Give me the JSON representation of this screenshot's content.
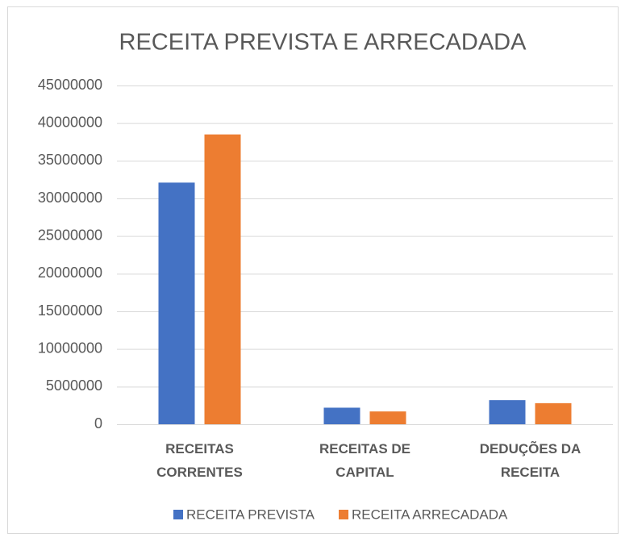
{
  "chart_data": {
    "type": "bar",
    "title": "RECEITA PREVISTA E ARRECADADA",
    "categories": [
      "RECEITAS CORRENTES",
      "RECEITAS DE CAPITAL",
      "DEDUÇÕES DA RECEITA"
    ],
    "series": [
      {
        "name": "RECEITA PREVISTA",
        "color": "#4472c4",
        "values": [
          32100000,
          2200000,
          3200000
        ]
      },
      {
        "name": "RECEITA ARRECADADA",
        "color": "#ed7d31",
        "values": [
          38500000,
          1700000,
          2800000
        ]
      }
    ],
    "ylim": [
      0,
      45000000
    ],
    "yticks": [
      0,
      5000000,
      10000000,
      15000000,
      20000000,
      25000000,
      30000000,
      35000000,
      40000000,
      45000000
    ],
    "grid": true,
    "legend": "bottom"
  }
}
